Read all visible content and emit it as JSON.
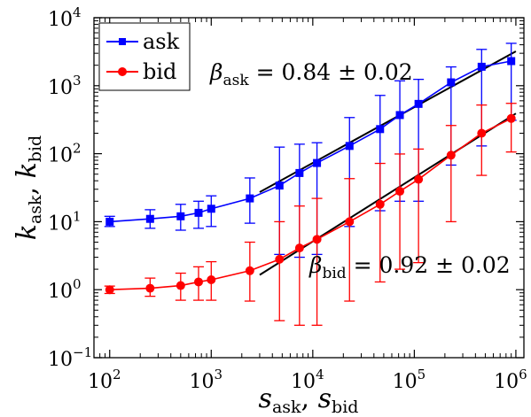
{
  "chart_data": {
    "type": "scatter",
    "x_scale": "log",
    "y_scale": "log",
    "xlim": [
      70,
      1200000
    ],
    "ylim": [
      0.1,
      10000
    ],
    "grid": false,
    "legend_position": "top-left",
    "xlabel": {
      "a": "s",
      "a_sub": "ask",
      "sep": ", ",
      "b": "s",
      "b_sub": "bid"
    },
    "ylabel": {
      "a": "k",
      "a_sub": "ask",
      "sep": ", ",
      "b": "k",
      "b_sub": "bid"
    },
    "x_ticks": [
      {
        "base": "10",
        "exp": "2",
        "value": 100
      },
      {
        "base": "10",
        "exp": "3",
        "value": 1000
      },
      {
        "base": "10",
        "exp": "4",
        "value": 10000
      },
      {
        "base": "10",
        "exp": "5",
        "value": 100000
      },
      {
        "base": "10",
        "exp": "6",
        "value": 1000000
      }
    ],
    "y_ticks": [
      {
        "base": "10",
        "exp": "−1",
        "value": 0.1
      },
      {
        "base": "10",
        "exp": "0",
        "value": 1
      },
      {
        "base": "10",
        "exp": "1",
        "value": 10
      },
      {
        "base": "10",
        "exp": "2",
        "value": 100
      },
      {
        "base": "10",
        "exp": "3",
        "value": 1000
      },
      {
        "base": "10",
        "exp": "4",
        "value": 10000
      }
    ],
    "series": [
      {
        "name": "ask",
        "color": "#0000ff",
        "marker": "square",
        "x": [
          100,
          250,
          500,
          750,
          1000,
          2400,
          4700,
          7400,
          11000,
          23000,
          46000,
          72000,
          110000,
          230000,
          460000,
          900000
        ],
        "y": [
          10,
          11,
          12,
          13.5,
          15.5,
          22,
          34,
          52,
          73,
          130,
          230,
          370,
          540,
          1120,
          1900,
          2300
        ],
        "y_low": [
          8.5,
          8,
          7.5,
          8,
          8.5,
          9.5,
          3.3,
          3,
          3.3,
          8.5,
          14.5,
          20,
          20,
          68,
          130,
          310
        ],
        "y_high": [
          12,
          15,
          18,
          20,
          24,
          44,
          125,
          138,
          145,
          340,
          720,
          1180,
          1240,
          1890,
          3420,
          4200
        ]
      },
      {
        "name": "bid",
        "color": "#ff0000",
        "marker": "circle",
        "x": [
          100,
          250,
          500,
          750,
          1000,
          2400,
          4700,
          7400,
          11000,
          23000,
          46000,
          72000,
          110000,
          230000,
          460000,
          900000
        ],
        "y": [
          1,
          1.05,
          1.15,
          1.3,
          1.4,
          1.9,
          2.8,
          4.1,
          5.5,
          10,
          18,
          28,
          42,
          95,
          200,
          330
        ],
        "y_low": [
          0.88,
          0.8,
          0.7,
          0.7,
          0.7,
          0.68,
          0.35,
          0.3,
          0.3,
          0.68,
          1.3,
          2,
          2.5,
          10,
          48,
          106
        ],
        "y_high": [
          1.13,
          1.48,
          1.75,
          2.17,
          2.58,
          5,
          10,
          17,
          22,
          43,
          72,
          99,
          117,
          260,
          520,
          550
        ]
      }
    ],
    "fits": [
      {
        "x_from": 3000,
        "x_to": 1000000,
        "y_from": 27.2,
        "y_to": 3200
      },
      {
        "x_from": 3000,
        "x_to": 1000000,
        "y_from": 1.65,
        "y_to": 390
      }
    ],
    "annotations": [
      {
        "beta": "β",
        "sub": "ask",
        "text": " = 0.84 ± 0.02"
      },
      {
        "beta": "β",
        "sub": "bid",
        "text": " = 0.92 ± 0.02"
      }
    ]
  }
}
